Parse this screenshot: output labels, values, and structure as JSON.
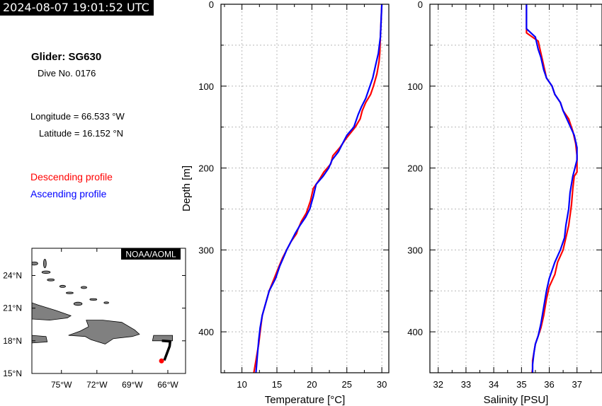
{
  "timestamp": "2024-08-07 19:01:52 UTC",
  "glider": {
    "title": "Glider: SG630",
    "dive": "Dive No. 0176"
  },
  "position": {
    "longitude": "Longitude = 66.533 °W",
    "latitude": "Latitude = 16.152 °N"
  },
  "legend": {
    "descending": "Descending profile",
    "ascending": "Ascending profile",
    "descending_color": "#ff0000",
    "ascending_color": "#0000ff"
  },
  "map": {
    "credit": "NOAA/AOML",
    "lat_labels": [
      "24°N",
      "21°N",
      "18°N",
      "15°N"
    ],
    "lon_labels": [
      "75°W",
      "72°W",
      "69°W",
      "66°W"
    ],
    "lat_range": [
      15,
      26.5
    ],
    "lon_range": [
      -77.5,
      -64.5
    ],
    "land_color": "#808080",
    "track_color": "#000000",
    "position_color": "#ff0000",
    "track": [
      [
        -66.5,
        18.0
      ],
      [
        -65.8,
        17.95
      ],
      [
        -65.85,
        17.5
      ],
      [
        -66.3,
        16.2
      ]
    ],
    "current": [
      -66.533,
      16.152
    ]
  },
  "chart_data": [
    {
      "type": "line",
      "xlabel": "Temperature [°C]",
      "ylabel": "Depth [m]",
      "xlim": [
        7,
        31
      ],
      "ylim": [
        450,
        0
      ],
      "xticks": [
        10,
        15,
        20,
        25,
        30
      ],
      "yticks": [
        0,
        100,
        200,
        300,
        400
      ],
      "grid": true,
      "series": [
        {
          "name": "Descending profile",
          "color": "#ff0000",
          "x": [
            30.0,
            29.9,
            29.8,
            29.7,
            29.6,
            29.3,
            28.8,
            28.4,
            27.7,
            27.2,
            26.9,
            26.2,
            24.8,
            24.0,
            23.0,
            22.7,
            21.7,
            21.0,
            20.2,
            19.8,
            19.2,
            18.5,
            18.0,
            17.8,
            17.0,
            16.4,
            15.8,
            15.3,
            14.6,
            13.9,
            13.4,
            12.9,
            12.6,
            12.4,
            12.2,
            12.0,
            11.8,
            11.7
          ],
          "y": [
            0,
            20,
            40,
            60,
            70,
            85,
            100,
            110,
            120,
            130,
            140,
            150,
            165,
            175,
            185,
            195,
            205,
            215,
            225,
            240,
            255,
            265,
            275,
            280,
            290,
            300,
            310,
            320,
            335,
            350,
            365,
            380,
            400,
            415,
            425,
            435,
            445,
            450
          ]
        },
        {
          "name": "Ascending profile",
          "color": "#0000ff",
          "x": [
            30.0,
            29.9,
            29.8,
            29.5,
            29.1,
            28.7,
            28.3,
            27.7,
            27.1,
            26.6,
            26.0,
            25.0,
            24.4,
            23.8,
            22.9,
            22.4,
            21.6,
            20.6,
            20.2,
            19.7,
            19.1,
            18.3,
            17.6,
            17.0,
            16.4,
            15.9,
            15.4,
            14.8,
            13.9,
            13.4,
            12.9,
            12.6,
            12.4,
            12.3,
            12.2,
            12.1,
            12.0
          ],
          "y": [
            0,
            20,
            40,
            60,
            75,
            90,
            100,
            115,
            125,
            135,
            150,
            160,
            170,
            180,
            190,
            200,
            210,
            220,
            235,
            250,
            260,
            270,
            280,
            290,
            300,
            310,
            320,
            335,
            350,
            365,
            380,
            395,
            410,
            420,
            430,
            440,
            450
          ]
        }
      ]
    },
    {
      "type": "line",
      "xlabel": "Salinity [PSU]",
      "ylabel": "",
      "xlim": [
        31.7,
        37.9
      ],
      "ylim": [
        450,
        0
      ],
      "xticks": [
        32,
        33,
        34,
        35,
        36,
        37
      ],
      "yticks": [
        0,
        100,
        200,
        300,
        400
      ],
      "grid": true,
      "series": [
        {
          "name": "Descending profile",
          "color": "#ff0000",
          "x": [
            35.18,
            35.18,
            35.18,
            35.18,
            35.6,
            35.7,
            35.8,
            35.9,
            36.1,
            36.2,
            36.4,
            36.5,
            36.7,
            36.85,
            36.95,
            37.0,
            37.0,
            36.9,
            36.85,
            36.8,
            36.7,
            36.6,
            36.5,
            36.3,
            36.2,
            36.0,
            35.9,
            35.8,
            35.7,
            35.6,
            35.5,
            35.45,
            35.4,
            35.4,
            35.38
          ],
          "y": [
            0,
            20,
            30,
            35,
            45,
            60,
            75,
            90,
            100,
            110,
            120,
            130,
            140,
            155,
            170,
            185,
            205,
            210,
            225,
            245,
            270,
            285,
            300,
            315,
            330,
            345,
            360,
            380,
            395,
            405,
            415,
            425,
            435,
            445,
            450
          ]
        },
        {
          "name": "Ascending profile",
          "color": "#0000ff",
          "x": [
            35.18,
            35.18,
            35.18,
            35.5,
            35.6,
            35.7,
            35.8,
            35.9,
            36.1,
            36.2,
            36.4,
            36.5,
            36.7,
            36.9,
            37.0,
            37.0,
            36.85,
            36.75,
            36.7,
            36.6,
            36.55,
            36.4,
            36.2,
            36.0,
            35.9,
            35.8,
            35.7,
            35.6,
            35.5,
            35.45,
            35.4,
            35.4
          ],
          "y": [
            0,
            20,
            30,
            40,
            55,
            65,
            80,
            90,
            100,
            110,
            120,
            130,
            145,
            160,
            175,
            190,
            210,
            230,
            250,
            270,
            285,
            300,
            315,
            335,
            350,
            370,
            390,
            405,
            415,
            425,
            440,
            450
          ]
        }
      ]
    }
  ]
}
